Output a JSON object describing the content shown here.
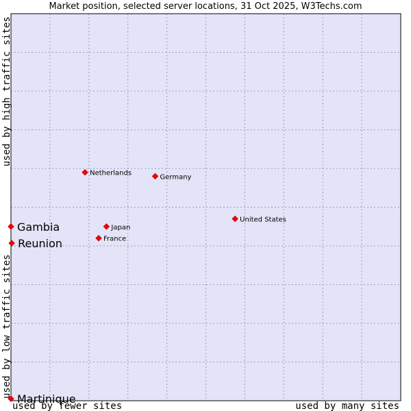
{
  "chart_data": {
    "type": "scatter",
    "title": "Market position, selected server locations, 31 Oct 2025, W3Techs.com",
    "xlabel_left": "used by fewer sites",
    "xlabel_right": "used by many sites",
    "ylabel_bottom": "used by low traffic sites",
    "ylabel_top": "used by high traffic sites",
    "xlim": [
      0,
      10
    ],
    "ylim": [
      0,
      10
    ],
    "grid": true,
    "colors": {
      "plot_bg": "#e4e4f8",
      "grid": "#9a9ac8",
      "point": "#ee0000",
      "border": "#000000"
    },
    "points": [
      {
        "label": "Netherlands",
        "x": 1.9,
        "y": 5.9,
        "highlight": false
      },
      {
        "label": "Germany",
        "x": 3.7,
        "y": 5.8,
        "highlight": false
      },
      {
        "label": "United States",
        "x": 5.75,
        "y": 4.7,
        "highlight": false
      },
      {
        "label": "Japan",
        "x": 2.45,
        "y": 4.5,
        "highlight": false
      },
      {
        "label": "France",
        "x": 2.25,
        "y": 4.2,
        "highlight": false
      },
      {
        "label": "Gambia",
        "x": 0.0,
        "y": 4.5,
        "highlight": true
      },
      {
        "label": "Reunion",
        "x": 0.02,
        "y": 4.07,
        "highlight": true
      },
      {
        "label": "Martinique",
        "x": 0.0,
        "y": 0.05,
        "highlight": true
      }
    ]
  }
}
